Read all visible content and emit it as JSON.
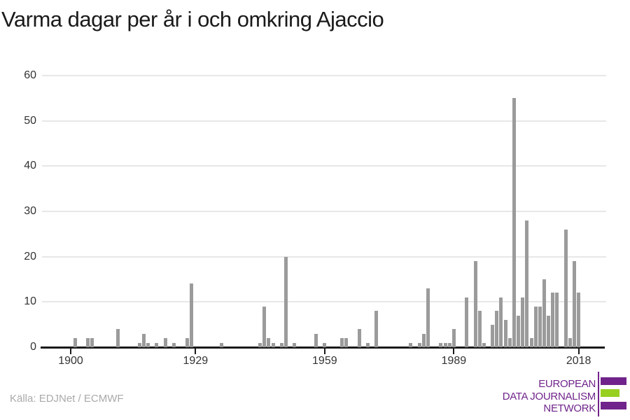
{
  "title": "Varma dagar per år i och omkring Ajaccio",
  "source_label": "Källa: EDJNet / ECMWF",
  "logo": {
    "line1": "EUROPEAN",
    "line2": "DATA JOURNALISM",
    "line3": "NETWORK",
    "purple": "#70248b",
    "green": "#97d021"
  },
  "chart_data": {
    "type": "bar",
    "title": "Varma dagar per år i och omkring Ajaccio",
    "xlabel": "",
    "ylabel": "",
    "grid": true,
    "legend": false,
    "bar_color": "#9b9b9b",
    "grid_color": "#e7e7e7",
    "axis_color": "#1a1a1a",
    "tick_label_color": "#333333",
    "xlim": [
      1893,
      2024
    ],
    "ylim": [
      0,
      60
    ],
    "x_axis_ticks": [
      1900,
      1929,
      1959,
      1989,
      2018
    ],
    "y_axis_ticks": [
      0,
      10,
      20,
      30,
      40,
      50,
      60
    ],
    "series_name": "Varma dagar per år",
    "points": [
      [
        1901,
        2
      ],
      [
        1904,
        2
      ],
      [
        1905,
        2
      ],
      [
        1911,
        4
      ],
      [
        1916,
        1
      ],
      [
        1917,
        3
      ],
      [
        1918,
        1
      ],
      [
        1920,
        1
      ],
      [
        1922,
        2
      ],
      [
        1924,
        1
      ],
      [
        1927,
        2
      ],
      [
        1928,
        14
      ],
      [
        1935,
        1
      ],
      [
        1944,
        1
      ],
      [
        1945,
        9
      ],
      [
        1946,
        2
      ],
      [
        1947,
        1
      ],
      [
        1949,
        1
      ],
      [
        1950,
        20
      ],
      [
        1952,
        1
      ],
      [
        1957,
        3
      ],
      [
        1959,
        1
      ],
      [
        1963,
        2
      ],
      [
        1964,
        2
      ],
      [
        1967,
        4
      ],
      [
        1969,
        1
      ],
      [
        1971,
        8
      ],
      [
        1979,
        1
      ],
      [
        1981,
        1
      ],
      [
        1982,
        3
      ],
      [
        1983,
        13
      ],
      [
        1986,
        1
      ],
      [
        1987,
        1
      ],
      [
        1988,
        1
      ],
      [
        1989,
        4
      ],
      [
        1992,
        11
      ],
      [
        1994,
        19
      ],
      [
        1995,
        8
      ],
      [
        1996,
        1
      ],
      [
        1998,
        5
      ],
      [
        1999,
        8
      ],
      [
        2000,
        11
      ],
      [
        2001,
        6
      ],
      [
        2002,
        2
      ],
      [
        2003,
        55
      ],
      [
        2004,
        7
      ],
      [
        2005,
        11
      ],
      [
        2006,
        28
      ],
      [
        2007,
        2
      ],
      [
        2008,
        9
      ],
      [
        2009,
        9
      ],
      [
        2010,
        15
      ],
      [
        2011,
        7
      ],
      [
        2012,
        12
      ],
      [
        2013,
        12
      ],
      [
        2015,
        26
      ],
      [
        2016,
        2
      ],
      [
        2017,
        19
      ],
      [
        2018,
        12
      ]
    ]
  }
}
